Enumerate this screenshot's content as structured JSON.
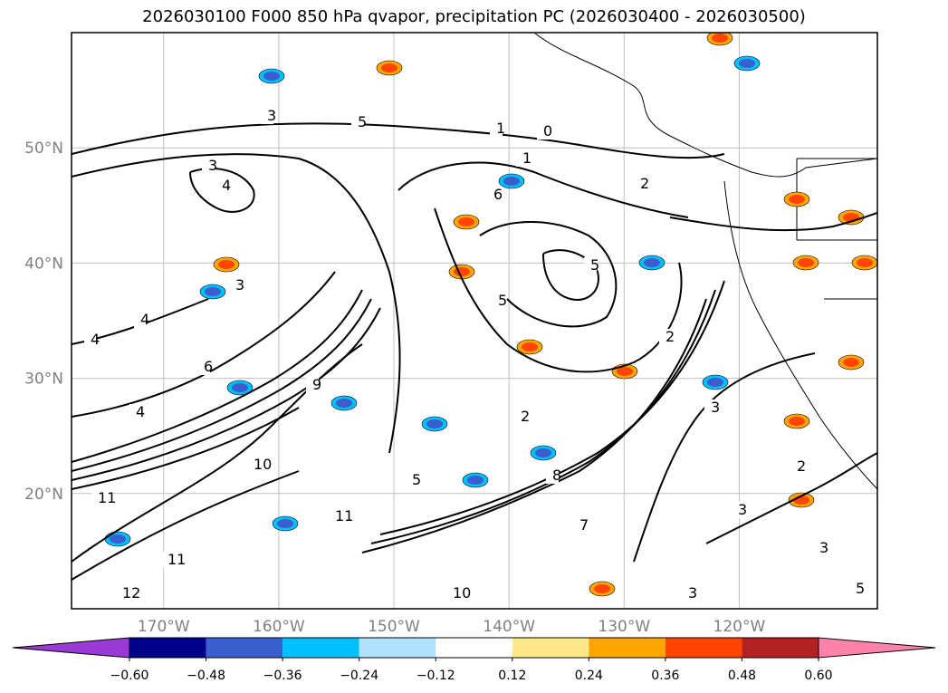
{
  "chart_data": {
    "type": "map",
    "title": "2026030100 F000 850 hPa qvapor, precipitation PC (2026030400 - 2026030500)",
    "lat_ticks": [
      "50°N",
      "40°N",
      "30°N",
      "20°N"
    ],
    "lon_ticks": [
      "170°W",
      "160°W",
      "150°W",
      "140°W",
      "130°W",
      "120°W"
    ],
    "lat_range": [
      10,
      60
    ],
    "lon_range": [
      -178,
      -108
    ],
    "contour_labels": [
      "3",
      "5",
      "1",
      "0",
      "2",
      "4",
      "6",
      "9",
      "10",
      "11",
      "12",
      "7",
      "8"
    ],
    "colorbar": {
      "ticks": [
        "−0.60",
        "−0.48",
        "−0.36",
        "−0.24",
        "−0.12",
        "0.12",
        "0.24",
        "0.36",
        "0.48",
        "0.60"
      ],
      "colors": [
        "#9a3ad6",
        "#00008b",
        "#3a5fcd",
        "#00bfff",
        "#b0e2ff",
        "#ffffff",
        "#ffe88a",
        "#ffa500",
        "#ff4500",
        "#b22222",
        "#ff82ab"
      ],
      "extend": "both"
    },
    "features": {
      "grid": true,
      "coastlines": true,
      "political_boundaries": true
    }
  }
}
